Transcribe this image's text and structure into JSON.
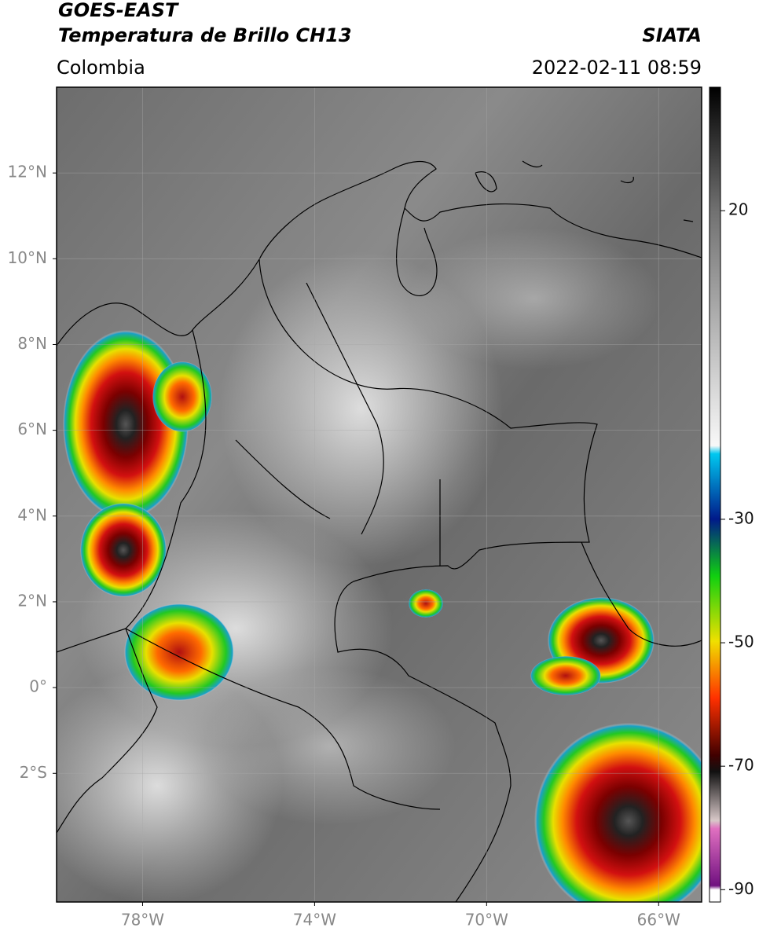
{
  "header": {
    "title": "GOES-EAST",
    "subtitle": "Temperatura de Brillo CH13",
    "source": "SIATA",
    "region": "Colombia",
    "datetime": "2022-02-11 08:59"
  },
  "map": {
    "xlim": [
      -80,
      -65
    ],
    "ylim": [
      -5,
      14
    ],
    "grid": true,
    "xticks": [
      {
        "value": -78,
        "label": "78°W"
      },
      {
        "value": -74,
        "label": "74°W"
      },
      {
        "value": -70,
        "label": "70°W"
      },
      {
        "value": -66,
        "label": "66°W"
      }
    ],
    "yticks": [
      {
        "value": 12,
        "label": "12°N"
      },
      {
        "value": 10,
        "label": "10°N"
      },
      {
        "value": 8,
        "label": "8°N"
      },
      {
        "value": 6,
        "label": "6°N"
      },
      {
        "value": 4,
        "label": "4°N"
      },
      {
        "value": 2,
        "label": "2°N"
      },
      {
        "value": 0,
        "label": "0°"
      },
      {
        "value": -2,
        "label": "2°S"
      }
    ]
  },
  "colorbar": {
    "lim": [
      -92,
      40
    ],
    "ticks": [
      20,
      -30,
      -50,
      -70,
      -90
    ]
  }
}
